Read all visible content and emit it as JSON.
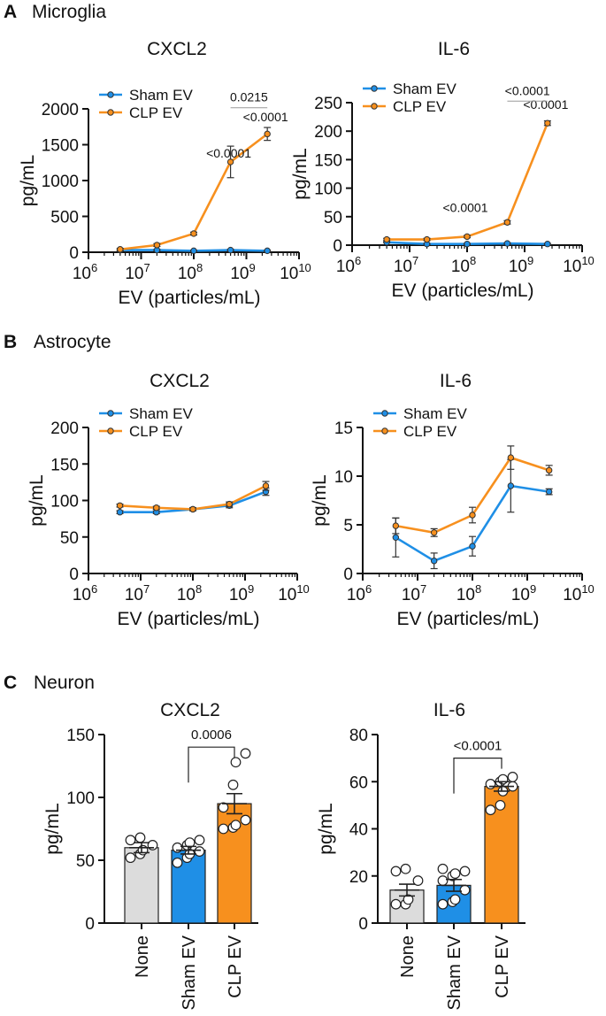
{
  "panels": [
    {
      "letter": "A",
      "title": "Microglia"
    },
    {
      "letter": "B",
      "title": "Astrocyte"
    },
    {
      "letter": "C",
      "title": "Neuron"
    }
  ],
  "colors": {
    "sham": "#1f8fe6",
    "clp": "#f7901e",
    "none_bar": "#dcdcdc",
    "axis": "#111111"
  },
  "chart_data": [
    {
      "id": "A-CXCL2",
      "type": "line",
      "title": "CXCL2",
      "xlabel": "EV (particles/mL)",
      "ylabel": "pg/mL",
      "xscale": "log10",
      "xlim_exp": [
        6,
        10
      ],
      "xtick_labels": [
        [
          "10",
          "6"
        ],
        [
          "10",
          "7"
        ],
        [
          "10",
          "8"
        ],
        [
          "10",
          "9"
        ],
        [
          "10",
          "10"
        ]
      ],
      "ylim": [
        0,
        2000
      ],
      "yticks": [
        0,
        500,
        1000,
        1500,
        2000
      ],
      "ytick_labels": [
        "0",
        "500",
        "1000",
        "1500",
        "2000"
      ],
      "legend": [
        "Sham EV",
        "CLP EV"
      ],
      "legend_position": "top-left",
      "x": [
        4000000,
        20000000,
        100000000,
        500000000,
        2500000000
      ],
      "series": [
        {
          "name": "Sham EV",
          "color_key": "sham",
          "values": [
            30,
            30,
            20,
            30,
            20
          ],
          "err": [
            10,
            10,
            8,
            10,
            8
          ]
        },
        {
          "name": "CLP EV",
          "color_key": "clp",
          "values": [
            40,
            100,
            260,
            1260,
            1650
          ],
          "err": [
            15,
            20,
            20,
            220,
            90
          ]
        }
      ],
      "annotations": [
        {
          "text": "<0.0001",
          "x": 500000000,
          "y": 1270
        },
        {
          "text": "<0.0001",
          "x": 2500000000,
          "y": 1780
        },
        {
          "text": "0.0215",
          "x_from": 500000000,
          "x_to": 2500000000,
          "y": 2090,
          "bracket": true
        }
      ]
    },
    {
      "id": "A-IL6",
      "type": "line",
      "title": "IL-6",
      "xlabel": "EV (particles/mL)",
      "ylabel": "pg/mL",
      "xscale": "log10",
      "xlim_exp": [
        6,
        10
      ],
      "xtick_labels": [
        [
          "10",
          "6"
        ],
        [
          "10",
          "7"
        ],
        [
          "10",
          "8"
        ],
        [
          "10",
          "9"
        ],
        [
          "10",
          "10"
        ]
      ],
      "ylim": [
        0,
        250
      ],
      "yticks": [
        0,
        50,
        100,
        150,
        200,
        250
      ],
      "ytick_labels": [
        "0",
        "50",
        "100",
        "150",
        "200",
        "250"
      ],
      "legend": [
        "Sham EV",
        "CLP EV"
      ],
      "legend_position": "top-left",
      "x": [
        4000000,
        20000000,
        100000000,
        500000000,
        2500000000
      ],
      "series": [
        {
          "name": "Sham EV",
          "color_key": "sham",
          "values": [
            5,
            2,
            2,
            3,
            2
          ],
          "err": [
            1,
            1,
            1,
            1,
            1
          ]
        },
        {
          "name": "CLP EV",
          "color_key": "clp",
          "values": [
            10,
            10,
            15,
            40,
            214
          ],
          "err": [
            2,
            2,
            2,
            3,
            4
          ]
        }
      ],
      "annotations": [
        {
          "text": "<0.0001",
          "x": 100000000,
          "y": 52
        },
        {
          "text": "<0.0001",
          "x": 2500000000,
          "y": 233
        },
        {
          "text": "<0.0001",
          "x_from": 500000000,
          "x_to": 2500000000,
          "y": 262,
          "bracket": true
        }
      ]
    },
    {
      "id": "B-CXCL2",
      "type": "line",
      "title": "CXCL2",
      "xlabel": "EV (particles/mL)",
      "ylabel": "pg/mL",
      "xscale": "log10",
      "xlim_exp": [
        6,
        10
      ],
      "xtick_labels": [
        [
          "10",
          "6"
        ],
        [
          "10",
          "7"
        ],
        [
          "10",
          "8"
        ],
        [
          "10",
          "9"
        ],
        [
          "10",
          "10"
        ]
      ],
      "ylim": [
        0,
        200
      ],
      "yticks": [
        0,
        50,
        100,
        150,
        200
      ],
      "ytick_labels": [
        "0",
        "50",
        "100",
        "150",
        "200"
      ],
      "legend": [
        "Sham EV",
        "CLP EV"
      ],
      "legend_position": "top-left",
      "x": [
        4000000,
        20000000,
        100000000,
        500000000,
        2500000000
      ],
      "series": [
        {
          "name": "Sham EV",
          "color_key": "sham",
          "values": [
            84,
            84,
            88,
            93,
            112
          ],
          "err": [
            2,
            2,
            2,
            3,
            5
          ]
        },
        {
          "name": "CLP EV",
          "color_key": "clp",
          "values": [
            93,
            90,
            88,
            95,
            120
          ],
          "err": [
            2,
            2,
            2,
            3,
            6
          ]
        }
      ],
      "annotations": []
    },
    {
      "id": "B-IL6",
      "type": "line",
      "title": "IL-6",
      "xlabel": "EV (particles/mL)",
      "ylabel": "pg/mL",
      "xscale": "log10",
      "xlim_exp": [
        6,
        10
      ],
      "xtick_labels": [
        [
          "10",
          "6"
        ],
        [
          "10",
          "7"
        ],
        [
          "10",
          "8"
        ],
        [
          "10",
          "9"
        ],
        [
          "10",
          "10"
        ]
      ],
      "ylim": [
        0,
        15
      ],
      "yticks": [
        0,
        5,
        10,
        15
      ],
      "ytick_labels": [
        "0",
        "5",
        "10",
        "15"
      ],
      "legend": [
        "Sham EV",
        "CLP EV"
      ],
      "legend_position": "top-left",
      "x": [
        4000000,
        20000000,
        100000000,
        500000000,
        2500000000
      ],
      "series": [
        {
          "name": "Sham EV",
          "color_key": "sham",
          "values": [
            3.7,
            1.3,
            2.8,
            9.0,
            8.4
          ],
          "err": [
            2.0,
            0.8,
            1.0,
            2.7,
            0.3
          ]
        },
        {
          "name": "CLP EV",
          "color_key": "clp",
          "values": [
            4.9,
            4.2,
            6.0,
            11.9,
            10.6
          ],
          "err": [
            0.8,
            0.4,
            0.8,
            1.2,
            0.5
          ]
        }
      ],
      "annotations": []
    },
    {
      "id": "C-CXCL2",
      "type": "bar",
      "title": "CXCL2",
      "ylabel": "pg/mL",
      "categories": [
        "None",
        "Sham EV",
        "CLP EV"
      ],
      "bar_color_keys": [
        "none_bar",
        "sham",
        "clp"
      ],
      "values": [
        60,
        58,
        95
      ],
      "err": [
        4,
        3,
        8
      ],
      "points": [
        [
          52,
          55,
          58,
          62,
          66,
          68
        ],
        [
          48,
          52,
          55,
          57,
          60,
          62,
          64,
          66
        ],
        [
          75,
          76,
          78,
          82,
          92,
          110,
          128,
          135
        ]
      ],
      "ylim": [
        0,
        150
      ],
      "yticks": [
        0,
        50,
        100,
        150
      ],
      "ytick_labels": [
        "0",
        "50",
        "100",
        "150"
      ],
      "comparison": {
        "text": "0.0006",
        "from": 1,
        "to": 2,
        "y": 140
      }
    },
    {
      "id": "C-IL6",
      "type": "bar",
      "title": "IL-6",
      "ylabel": "pg/mL",
      "categories": [
        "None",
        "Sham EV",
        "CLP EV"
      ],
      "bar_color_keys": [
        "none_bar",
        "sham",
        "clp"
      ],
      "values": [
        14,
        16,
        58
      ],
      "err": [
        2.5,
        2.5,
        2
      ],
      "points": [
        [
          8,
          8,
          10,
          18,
          22,
          23
        ],
        [
          8,
          9,
          10,
          14,
          18,
          20,
          21,
          22,
          23
        ],
        [
          48,
          50,
          56,
          58,
          59,
          60,
          61,
          62
        ]
      ],
      "ylim": [
        0,
        80
      ],
      "yticks": [
        0,
        20,
        40,
        60,
        80
      ],
      "ytick_labels": [
        "0",
        "20",
        "40",
        "60",
        "80"
      ],
      "comparison": {
        "text": "<0.0001",
        "from": 1,
        "to": 2,
        "y": 70
      }
    }
  ]
}
